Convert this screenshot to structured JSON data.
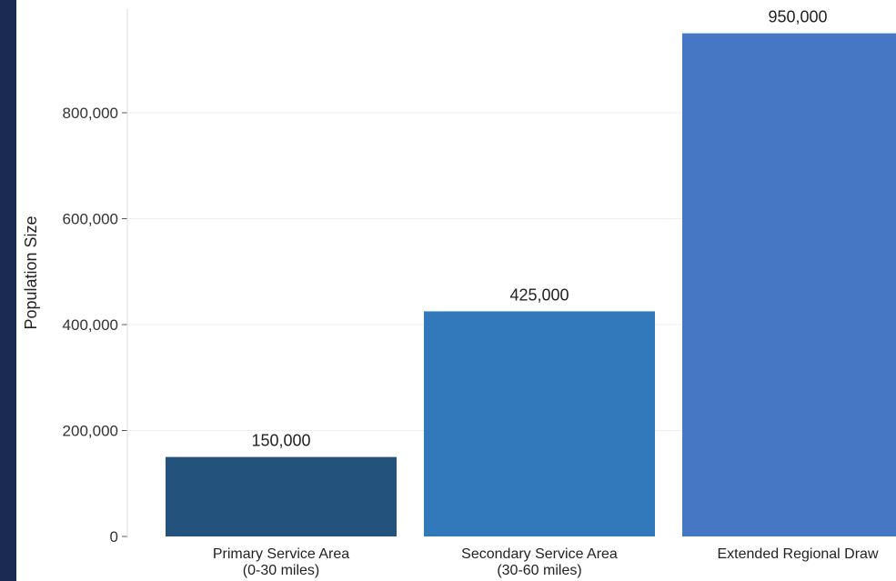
{
  "chart_data": {
    "type": "bar",
    "categories": [
      [
        "Primary Service Area",
        "(0-30 miles)"
      ],
      [
        "Secondary Service Area",
        "(30-60 miles)"
      ],
      [
        "Extended Regional Draw"
      ]
    ],
    "values": [
      150000,
      425000,
      950000
    ],
    "value_labels": [
      "150,000",
      "425,000",
      "950,000"
    ],
    "colors": [
      "#23527c",
      "#3179bb",
      "#4677c4"
    ],
    "ylabel": "Population Size",
    "xlabel": "",
    "title": "",
    "ylim": [
      0,
      1000000
    ],
    "y_ticks": [
      0,
      200000,
      400000,
      600000,
      800000
    ],
    "y_tick_labels": [
      "0",
      "200,000",
      "400,000",
      "600,000",
      "800,000"
    ],
    "grid": true,
    "legend": "none"
  }
}
